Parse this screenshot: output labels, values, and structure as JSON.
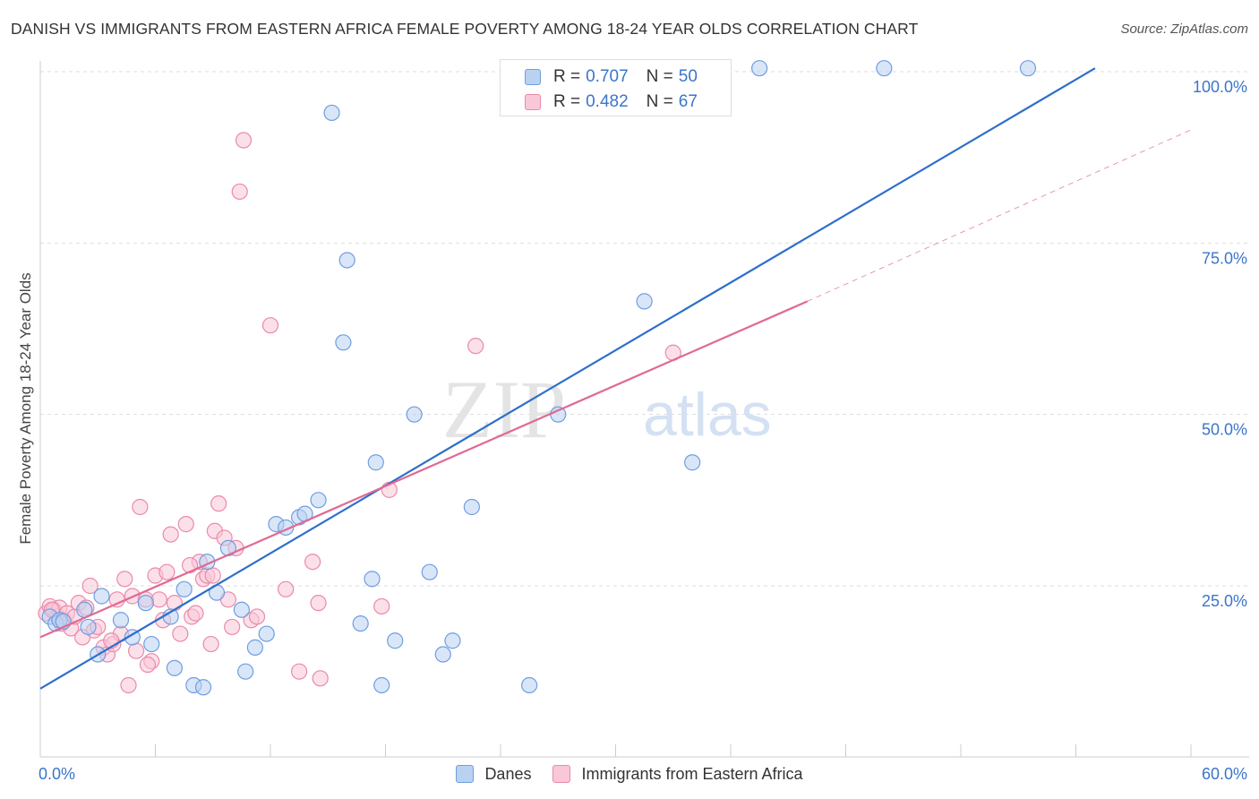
{
  "title": "DANISH VS IMMIGRANTS FROM EASTERN AFRICA FEMALE POVERTY AMONG 18-24 YEAR OLDS CORRELATION CHART",
  "source": "Source: ZipAtlas.com",
  "watermark": {
    "zip": "ZIP",
    "atlas": "atlas"
  },
  "legend_top": {
    "r_label": "R =",
    "n_label": "N =",
    "danes": {
      "r": "0.707",
      "n": "50"
    },
    "immigrants": {
      "r": "0.482",
      "n": "67"
    }
  },
  "legend_bottom": {
    "danes": "Danes",
    "immigrants": "Immigrants from Eastern Africa"
  },
  "colors": {
    "danes_fill": "#b9d2f2",
    "danes_stroke": "#6f9ee0",
    "danes_line": "#2e6fcc",
    "imm_fill": "#f9c7d7",
    "imm_stroke": "#ea8aa9",
    "imm_line": "#e06a93",
    "tick_label": "#3b75c9",
    "grid": "#dddddd"
  },
  "chart_data": {
    "type": "scatter",
    "title": "DANISH VS IMMIGRANTS FROM EASTERN AFRICA FEMALE POVERTY AMONG 18-24 YEAR OLDS CORRELATION CHART",
    "xlabel": "",
    "ylabel": "Female Poverty Among 18-24 Year Olds",
    "xlim": [
      0,
      60
    ],
    "ylim": [
      0,
      105
    ],
    "x_tick_labels": [
      "0.0%",
      "60.0%"
    ],
    "y_ticks": [
      25,
      50,
      75,
      100
    ],
    "y_tick_labels": [
      "25.0%",
      "50.0%",
      "75.0%",
      "100.0%"
    ],
    "grid": "horizontal dashed",
    "legend_position": "top-center",
    "series": [
      {
        "name": "Danes",
        "r": 0.707,
        "n": 50,
        "points": [
          [
            0.5,
            20.5
          ],
          [
            0.8,
            19.5
          ],
          [
            1.0,
            20.0
          ],
          [
            1.2,
            19.8
          ],
          [
            2.3,
            21.5
          ],
          [
            2.5,
            19.0
          ],
          [
            3.2,
            23.5
          ],
          [
            3.0,
            15.0
          ],
          [
            4.2,
            20.0
          ],
          [
            4.8,
            17.5
          ],
          [
            5.5,
            22.5
          ],
          [
            5.8,
            16.5
          ],
          [
            6.8,
            20.5
          ],
          [
            7.0,
            13.0
          ],
          [
            7.5,
            24.5
          ],
          [
            8.0,
            10.5
          ],
          [
            8.5,
            10.2
          ],
          [
            8.7,
            28.5
          ],
          [
            9.2,
            24.0
          ],
          [
            9.8,
            30.5
          ],
          [
            10.5,
            21.5
          ],
          [
            10.7,
            12.5
          ],
          [
            11.2,
            16.0
          ],
          [
            11.8,
            18.0
          ],
          [
            12.3,
            34.0
          ],
          [
            12.8,
            33.5
          ],
          [
            13.5,
            35.0
          ],
          [
            13.8,
            35.5
          ],
          [
            14.5,
            37.5
          ],
          [
            15.2,
            94.0
          ],
          [
            15.8,
            60.5
          ],
          [
            16.0,
            72.5
          ],
          [
            16.7,
            19.5
          ],
          [
            17.3,
            26.0
          ],
          [
            17.5,
            43.0
          ],
          [
            17.8,
            10.5
          ],
          [
            18.5,
            17.0
          ],
          [
            19.5,
            50.0
          ],
          [
            20.3,
            27.0
          ],
          [
            21.0,
            15.0
          ],
          [
            21.5,
            17.0
          ],
          [
            22.5,
            36.5
          ],
          [
            25.5,
            10.5
          ],
          [
            27.0,
            50.0
          ],
          [
            30.0,
            100.5
          ],
          [
            31.5,
            66.5
          ],
          [
            34.0,
            43.0
          ],
          [
            37.5,
            100.5
          ],
          [
            44.0,
            100.5
          ],
          [
            51.5,
            100.5
          ]
        ],
        "trendline": {
          "x": [
            0,
            55
          ],
          "y": [
            10.0,
            100.5
          ]
        }
      },
      {
        "name": "Immigrants from Eastern Africa",
        "r": 0.482,
        "n": 67,
        "points": [
          [
            0.3,
            21.0
          ],
          [
            0.5,
            22.0
          ],
          [
            0.7,
            21.5
          ],
          [
            0.9,
            20.5
          ],
          [
            1.0,
            21.8
          ],
          [
            1.2,
            20.0
          ],
          [
            1.4,
            21.0
          ],
          [
            1.6,
            18.8
          ],
          [
            1.8,
            20.5
          ],
          [
            2.0,
            22.5
          ],
          [
            2.2,
            17.5
          ],
          [
            2.4,
            21.8
          ],
          [
            2.6,
            25.0
          ],
          [
            2.8,
            18.5
          ],
          [
            3.0,
            19.0
          ],
          [
            3.3,
            16.0
          ],
          [
            3.5,
            15.0
          ],
          [
            3.8,
            16.5
          ],
          [
            4.0,
            23.0
          ],
          [
            4.2,
            18.0
          ],
          [
            4.4,
            26.0
          ],
          [
            4.6,
            10.5
          ],
          [
            4.8,
            23.5
          ],
          [
            5.0,
            15.5
          ],
          [
            5.2,
            36.5
          ],
          [
            5.5,
            23.0
          ],
          [
            5.8,
            14.0
          ],
          [
            6.0,
            26.5
          ],
          [
            6.2,
            23.0
          ],
          [
            6.4,
            20.0
          ],
          [
            6.6,
            27.0
          ],
          [
            6.8,
            32.5
          ],
          [
            7.0,
            22.5
          ],
          [
            7.3,
            18.0
          ],
          [
            7.6,
            34.0
          ],
          [
            7.9,
            20.5
          ],
          [
            8.1,
            21.0
          ],
          [
            8.3,
            28.5
          ],
          [
            8.5,
            26.0
          ],
          [
            8.7,
            26.5
          ],
          [
            8.9,
            16.5
          ],
          [
            9.1,
            33.0
          ],
          [
            9.3,
            37.0
          ],
          [
            9.6,
            32.0
          ],
          [
            9.8,
            23.0
          ],
          [
            10.0,
            19.0
          ],
          [
            10.2,
            30.5
          ],
          [
            10.4,
            82.5
          ],
          [
            10.6,
            90.0
          ],
          [
            11.0,
            20.0
          ],
          [
            11.3,
            20.5
          ],
          [
            12.0,
            63.0
          ],
          [
            12.8,
            24.5
          ],
          [
            13.5,
            12.5
          ],
          [
            14.2,
            28.5
          ],
          [
            14.5,
            22.5
          ],
          [
            14.6,
            11.5
          ],
          [
            17.8,
            22.0
          ],
          [
            18.2,
            39.0
          ],
          [
            22.7,
            60.0
          ],
          [
            33.0,
            59.0
          ],
          [
            0.6,
            21.5
          ],
          [
            1.1,
            19.5
          ],
          [
            3.7,
            17.0
          ],
          [
            5.6,
            13.5
          ],
          [
            7.8,
            28.0
          ],
          [
            9.0,
            26.5
          ]
        ],
        "trendline": {
          "x": [
            0,
            40
          ],
          "y": [
            17.5,
            66.5
          ]
        },
        "trendline_dashed_extension": {
          "x": [
            40,
            60
          ],
          "y": [
            66.5,
            91.5
          ]
        }
      }
    ]
  }
}
